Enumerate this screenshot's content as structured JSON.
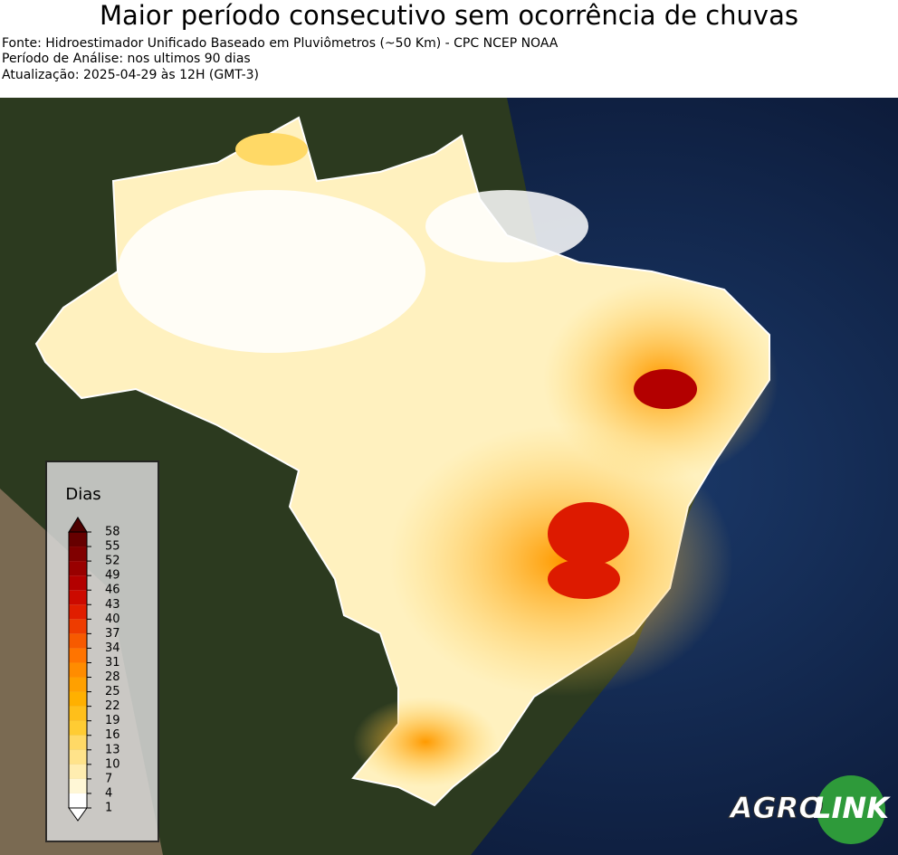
{
  "header": {
    "title": "Maior período consecutivo sem ocorrência de chuvas",
    "lines": [
      "Fonte: Hidroestimador Unificado Baseado em Pluviômetros (~50 Km) - CPC NCEP NOAA",
      "Período de Análise: nos ultimos 90 dias",
      "Atualização: 2025-04-29 às 12H (GMT-3)"
    ]
  },
  "legend": {
    "title": "Dias",
    "ticks": [
      1,
      4,
      7,
      10,
      13,
      16,
      19,
      22,
      25,
      28,
      31,
      34,
      37,
      40,
      43,
      46,
      49,
      52,
      55,
      58
    ],
    "colors": [
      "#ffffff",
      "#fff7d6",
      "#ffedb0",
      "#ffe38a",
      "#ffd966",
      "#ffcc33",
      "#ffbf1a",
      "#ffb000",
      "#ffa000",
      "#ff8c00",
      "#ff7400",
      "#f75a00",
      "#ee3c00",
      "#e01e00",
      "#cc0a00",
      "#b30000",
      "#990000",
      "#800000",
      "#660000"
    ],
    "over_color": "#4d0000",
    "under_color": "#ffffff"
  },
  "logo": {
    "left": "AGRO",
    "right": "LINK"
  }
}
